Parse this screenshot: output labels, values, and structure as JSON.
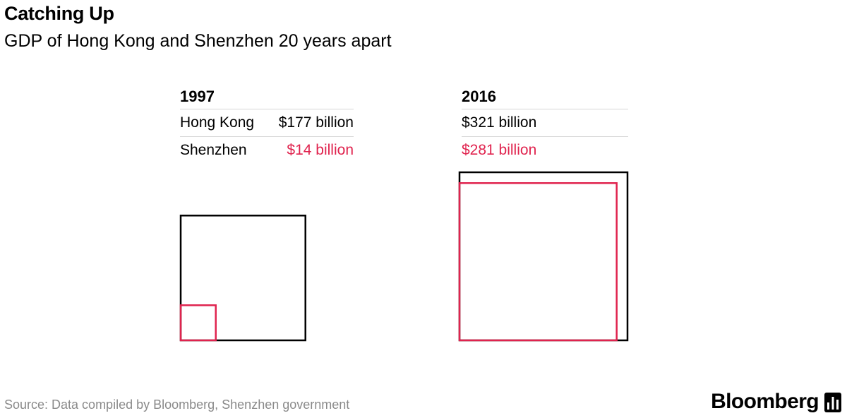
{
  "title": "Catching Up",
  "subtitle": "GDP of Hong Kong and Shenzhen 20 years apart",
  "source": "Source: Data compiled by Bloomberg, Shenzhen government",
  "brand": "Bloomberg",
  "colors": {
    "hong_kong": "#000000",
    "shenzhen": "#e0234e",
    "divider": "#d6d6d6",
    "source": "#8a8a8a"
  },
  "icons": {
    "brand_icon": "bloomberg-terminal-icon"
  },
  "chart_data": {
    "type": "proportional-area-squares",
    "series_labels": [
      "Hong Kong",
      "Shenzhen"
    ],
    "panels": [
      {
        "year": "1997",
        "hong_kong": 177,
        "hong_kong_label": "$177 billion",
        "shenzhen": 14,
        "shenzhen_label": "$14 billion"
      },
      {
        "year": "2016",
        "hong_kong": 321,
        "hong_kong_label": "$321 billion",
        "shenzhen": 281,
        "shenzhen_label": "$281 billion"
      }
    ]
  }
}
